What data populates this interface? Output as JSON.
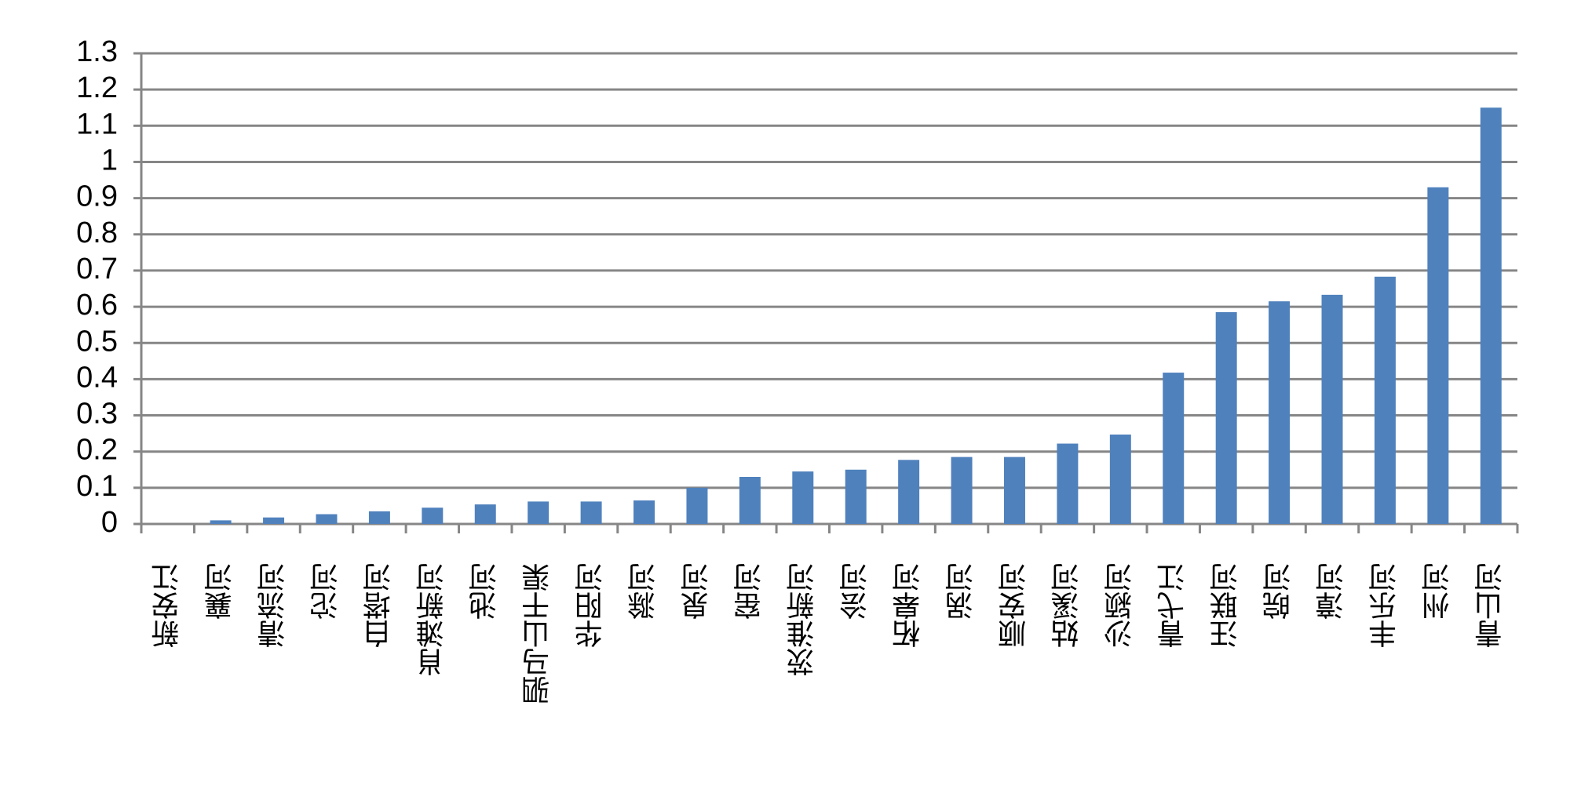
{
  "chart_data": {
    "type": "bar",
    "categories": [
      "新安江",
      "襄河",
      "清流河",
      "沱河",
      "白塔河",
      "肖滩新河",
      "池河",
      "驷马山干渠",
      "华阳河",
      "滁河",
      "泉河",
      "窑河",
      "茨淮新河",
      "浍河",
      "柘皋河",
      "涡河",
      "顺安河",
      "姑溪河",
      "沙颍河",
      "青弋江",
      "汪联河",
      "皖河",
      "漳河",
      "丰乐河",
      "州河",
      "青山河"
    ],
    "values": [
      0,
      0.01,
      0.018,
      0.027,
      0.035,
      0.045,
      0.054,
      0.062,
      0.062,
      0.065,
      0.1,
      0.13,
      0.145,
      0.15,
      0.177,
      0.185,
      0.185,
      0.222,
      0.247,
      0.418,
      0.585,
      0.615,
      0.633,
      0.683,
      0.93,
      1.15
    ],
    "color": "#4f81bd",
    "ylim": [
      0,
      1.3
    ],
    "yticks": [
      0,
      0.1,
      0.2,
      0.3,
      0.4,
      0.5,
      0.6,
      0.7,
      0.8,
      0.9,
      1,
      1.1,
      1.2,
      1.3
    ],
    "grid": true
  }
}
